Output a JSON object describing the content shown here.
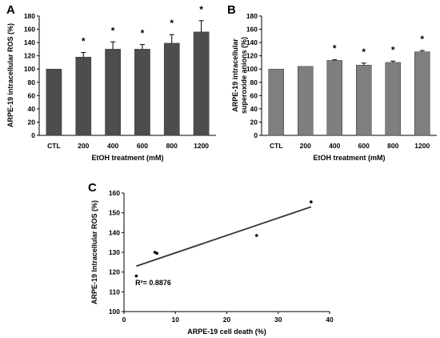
{
  "chart_data": [
    {
      "panel": "A",
      "type": "bar",
      "categories": [
        "CTL",
        "200",
        "400",
        "600",
        "800",
        "1200"
      ],
      "values": [
        100,
        118,
        130,
        130,
        139,
        156
      ],
      "errors": [
        0,
        7,
        11,
        7,
        13,
        17
      ],
      "significance": [
        "",
        "*",
        "*",
        "*",
        "*",
        "*"
      ],
      "ylabel": "ARPE-19 intracellular ROS (%)",
      "xlabel": "EtOH treatment (mM)",
      "ylim": [
        0,
        180
      ],
      "yticks": [
        0,
        20,
        40,
        60,
        80,
        100,
        120,
        140,
        160,
        180
      ],
      "bar_color": "#4d4d4d"
    },
    {
      "panel": "B",
      "type": "bar",
      "categories": [
        "CTL",
        "200",
        "400",
        "600",
        "800",
        "1200"
      ],
      "values": [
        100,
        104,
        113,
        106,
        110,
        126
      ],
      "errors": [
        0,
        0,
        1,
        3,
        2,
        2
      ],
      "significance": [
        "",
        "",
        "*",
        "*",
        "*",
        "*"
      ],
      "ylabel_lines": [
        "ARPE-19 intracellular",
        "superoxide anions (%)"
      ],
      "xlabel": "EtOH treatment (mM)",
      "ylim": [
        0,
        180
      ],
      "yticks": [
        0,
        20,
        40,
        60,
        80,
        100,
        120,
        140,
        160,
        180
      ],
      "bar_color": "#7f7f7f"
    },
    {
      "panel": "C",
      "type": "scatter",
      "points": [
        [
          2.4,
          118
        ],
        [
          6.0,
          130
        ],
        [
          6.4,
          129.5
        ],
        [
          25.8,
          138.5
        ],
        [
          36.4,
          155.5
        ]
      ],
      "trendline": [
        [
          2.4,
          123
        ],
        [
          36.4,
          153
        ]
      ],
      "annotation": "R²= 0.8876",
      "ylabel": "ARPE-19 Intracellular ROS (%)",
      "xlabel": "ARPE-19 cell death (%)",
      "xlim": [
        0,
        40
      ],
      "ylim": [
        100,
        160
      ],
      "xticks": [
        0,
        10,
        20,
        30,
        40
      ],
      "yticks": [
        100,
        110,
        120,
        130,
        140,
        150,
        160
      ]
    }
  ]
}
